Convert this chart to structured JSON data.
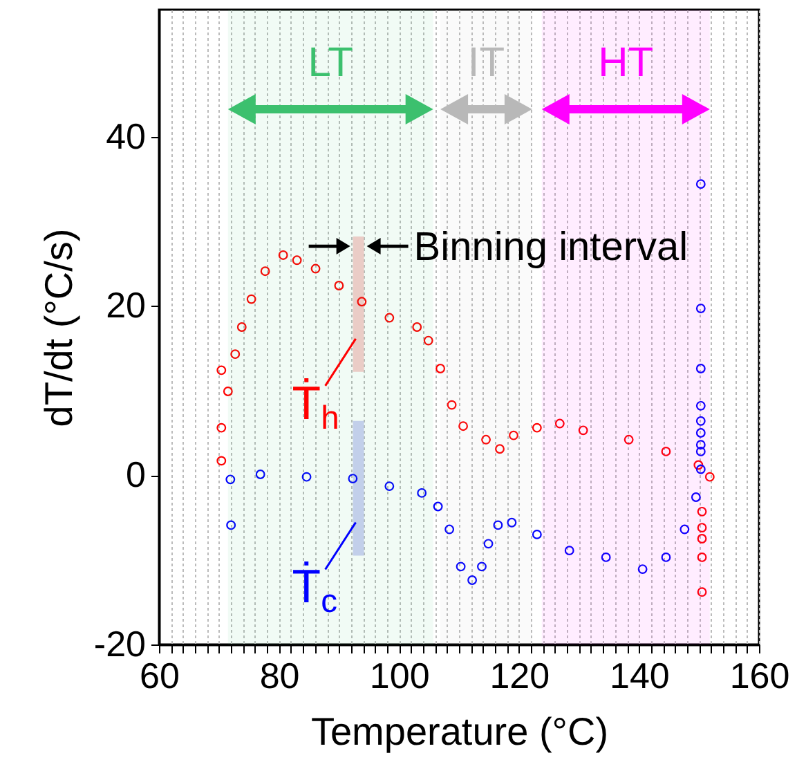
{
  "chart_data": {
    "type": "scatter",
    "xlabel": "Temperature (°C)",
    "ylabel": "dT/dt (°C/s)",
    "xlim": [
      60,
      160
    ],
    "ylim": [
      -20,
      55
    ],
    "xticks": [
      60,
      {
        "value": 62,
        "label": null
      },
      {
        "value": 64,
        "label": null
      },
      {
        "value": 66,
        "label": null
      },
      {
        "value": 68,
        "label": null
      },
      {
        "value": 70,
        "label": null
      },
      {
        "value": 72,
        "label": null
      },
      {
        "value": 74,
        "label": null
      },
      {
        "value": 76,
        "label": null
      },
      {
        "value": 78,
        "label": null
      },
      80,
      {
        "value": 82,
        "label": null
      },
      {
        "value": 84,
        "label": null
      },
      {
        "value": 86,
        "label": null
      },
      {
        "value": 88,
        "label": null
      },
      {
        "value": 90,
        "label": null
      },
      {
        "value": 92,
        "label": null
      },
      {
        "value": 94,
        "label": null
      },
      {
        "value": 96,
        "label": null
      },
      {
        "value": 98,
        "label": null
      },
      100,
      {
        "value": 102,
        "label": null
      },
      {
        "value": 104,
        "label": null
      },
      {
        "value": 106,
        "label": null
      },
      {
        "value": 108,
        "label": null
      },
      {
        "value": 110,
        "label": null
      },
      {
        "value": 112,
        "label": null
      },
      {
        "value": 114,
        "label": null
      },
      {
        "value": 116,
        "label": null
      },
      {
        "value": 118,
        "label": null
      },
      120,
      {
        "value": 122,
        "label": null
      },
      {
        "value": 124,
        "label": null
      },
      {
        "value": 126,
        "label": null
      },
      {
        "value": 128,
        "label": null
      },
      {
        "value": 130,
        "label": null
      },
      {
        "value": 132,
        "label": null
      },
      {
        "value": 134,
        "label": null
      },
      {
        "value": 136,
        "label": null
      },
      {
        "value": 138,
        "label": null
      },
      140,
      {
        "value": 142,
        "label": null
      },
      {
        "value": 144,
        "label": null
      },
      {
        "value": 146,
        "label": null
      },
      {
        "value": 148,
        "label": null
      },
      {
        "value": 150,
        "label": null
      },
      {
        "value": 152,
        "label": null
      },
      {
        "value": 154,
        "label": null
      },
      {
        "value": 156,
        "label": null
      },
      {
        "value": 158,
        "label": null
      },
      160
    ],
    "yticks": [
      -20,
      0,
      20,
      40
    ],
    "grid": "x",
    "marker": "circle",
    "series": [
      {
        "color": "#ff0000",
        "x": [
          70.4,
          70.4,
          70.4,
          71.5,
          72.7,
          73.8,
          75.4,
          77.7,
          80.7,
          83.0,
          86.1,
          90.0,
          93.8,
          98.4,
          103.0,
          104.9,
          106.9,
          108.8,
          110.7,
          114.5,
          116.8,
          119.1,
          123.0,
          126.8,
          130.7,
          138.3,
          144.5,
          149.9,
          151.8,
          150.5,
          150.5,
          150.5,
          150.5,
          150.5
        ],
        "values": [
          1.7,
          5.6,
          12.4,
          9.9,
          14.3,
          17.5,
          20.8,
          24.1,
          26.0,
          25.4,
          24.4,
          22.4,
          20.5,
          18.6,
          17.5,
          15.9,
          12.6,
          8.3,
          5.8,
          4.2,
          3.1,
          4.7,
          5.6,
          6.1,
          5.3,
          4.2,
          2.8,
          1.2,
          -0.2,
          -4.3,
          -6.2,
          -7.5,
          -9.7,
          -13.8
        ]
      },
      {
        "color": "#0000ff",
        "x": [
          71.9,
          72.0,
          76.9,
          84.6,
          92.3,
          98.4,
          103.8,
          106.5,
          108.4,
          110.3,
          112.2,
          113.8,
          114.9,
          116.5,
          118.8,
          123.0,
          128.4,
          134.5,
          140.6,
          144.5,
          147.6,
          149.5,
          150.3,
          150.3,
          150.3,
          150.3,
          150.3,
          150.3,
          150.3,
          150.3,
          150.3
        ],
        "values": [
          -0.5,
          -5.9,
          0.1,
          -0.2,
          -0.4,
          -1.3,
          -2.1,
          -3.7,
          -6.4,
          -10.8,
          -12.4,
          -10.8,
          -8.1,
          -5.9,
          -5.6,
          -7.0,
          -8.9,
          -9.7,
          -11.1,
          -9.7,
          -6.4,
          -2.6,
          0.7,
          2.8,
          3.6,
          5.0,
          6.4,
          8.2,
          12.6,
          19.7,
          34.4
        ]
      },
      {
        "type": "bar",
        "color": "#f7c4c4",
        "x": [
          93.25
        ],
        "base": [
          12.2
        ],
        "values": [
          16.0
        ]
      },
      {
        "type": "bar",
        "color": "#c4c8f2",
        "x": [
          93.25
        ],
        "base": [
          -9.5
        ],
        "values": [
          15.9
        ]
      }
    ],
    "bands": [
      {
        "axis": "x",
        "from": 71.5,
        "to": 105.7,
        "label": "LT",
        "color": "#3cc06e"
      },
      {
        "axis": "x",
        "from": 106.9,
        "to": 122.2,
        "label": "IT",
        "color": "#b8b8b8"
      },
      {
        "axis": "x",
        "from": 123.8,
        "to": 151.8,
        "label": "HT",
        "color": "#ff00ff"
      }
    ],
    "annotations": [
      "Binning interval",
      "Ṫ$_{h}$",
      "Ṫ$_{c}$"
    ]
  }
}
